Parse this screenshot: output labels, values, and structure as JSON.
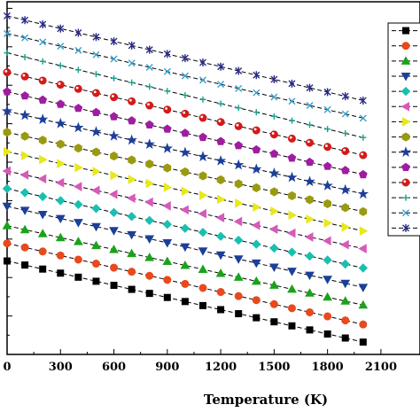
{
  "chart_data": {
    "type": "line",
    "title": "",
    "xlabel": "Temperature (K)",
    "ylabel": "",
    "xlim": [
      0,
      2200
    ],
    "x_ticks": [
      0,
      300,
      600,
      900,
      1200,
      1500,
      1800,
      2100
    ],
    "x": [
      0,
      100,
      200,
      300,
      400,
      500,
      600,
      700,
      800,
      900,
      1000,
      1100,
      1200,
      1300,
      1400,
      1500,
      1600,
      1700,
      1800,
      1900,
      2000
    ],
    "y_unit_note": "y axis tick labels are not visible; values are expressed as fraction of plot height (0 = bottom, 1 = top)",
    "ylim": [
      0,
      1
    ],
    "legend_position": "top-right",
    "grid": false,
    "series": [
      {
        "marker": "square",
        "color": "#000000",
        "start": 0.265,
        "end": 0.035
      },
      {
        "marker": "circle",
        "color": "#e8491d",
        "start": 0.315,
        "end": 0.085
      },
      {
        "marker": "triangle-up",
        "color": "#1aa31a",
        "start": 0.365,
        "end": 0.14
      },
      {
        "marker": "triangle-down",
        "color": "#1c3f9a",
        "start": 0.42,
        "end": 0.19
      },
      {
        "marker": "diamond",
        "color": "#1bbfb0",
        "start": 0.47,
        "end": 0.245
      },
      {
        "marker": "triangle-left",
        "color": "#d65ab8",
        "start": 0.52,
        "end": 0.3
      },
      {
        "marker": "triangle-right",
        "color": "#e8e81a",
        "start": 0.575,
        "end": 0.35
      },
      {
        "marker": "hexagon",
        "color": "#9a9a10",
        "start": 0.63,
        "end": 0.405
      },
      {
        "marker": "star",
        "color": "#1c3f9a",
        "start": 0.69,
        "end": 0.455
      },
      {
        "marker": "pentagon",
        "color": "#a01ca0",
        "start": 0.745,
        "end": 0.51
      },
      {
        "marker": "ball",
        "color": "#d41a1a",
        "start": 0.8,
        "end": 0.565
      },
      {
        "marker": "plus",
        "color": "#18a08a",
        "start": 0.855,
        "end": 0.615
      },
      {
        "marker": "x",
        "color": "#3aa0c8",
        "start": 0.91,
        "end": 0.67
      },
      {
        "marker": "asterisk",
        "color": "#2a2a8a",
        "start": 0.96,
        "end": 0.72
      }
    ]
  }
}
